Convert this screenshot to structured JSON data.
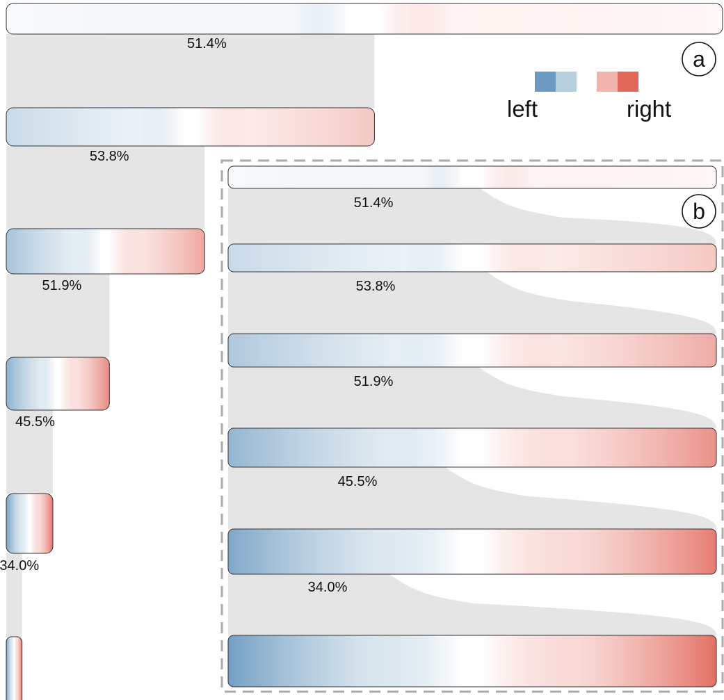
{
  "colors": {
    "left_dark": "#6c9ac0",
    "left_light": "#b6cfdf",
    "right_light": "#f2b5ae",
    "right_dark": "#e2685c",
    "flow": "#e5e5e5",
    "bar_border": "#333333",
    "dashed_border": "#aaaaaa"
  },
  "legend": {
    "left_label": "left",
    "right_label": "right"
  },
  "panel_a": {
    "label": "a",
    "levels": [
      {
        "percent_label": "51.4%",
        "width_fraction": 1.0,
        "intensity": 0.0
      },
      {
        "percent_label": "53.8%",
        "width_fraction": 0.514,
        "intensity": 0.35
      },
      {
        "percent_label": "51.9%",
        "width_fraction": 0.277,
        "intensity": 0.6
      },
      {
        "percent_label": "45.5%",
        "width_fraction": 0.144,
        "intensity": 0.8
      },
      {
        "percent_label": "34.0%",
        "width_fraction": 0.065,
        "intensity": 0.95
      },
      {
        "percent_label": "",
        "width_fraction": 0.022,
        "intensity": 1.0
      }
    ]
  },
  "panel_b": {
    "label": "b",
    "levels": [
      {
        "percent_label": "51.4%",
        "intensity": 0.0
      },
      {
        "percent_label": "53.8%",
        "intensity": 0.35
      },
      {
        "percent_label": "51.9%",
        "intensity": 0.55
      },
      {
        "percent_label": "45.5%",
        "intensity": 0.75
      },
      {
        "percent_label": "34.0%",
        "intensity": 0.9
      },
      {
        "percent_label": "",
        "intensity": 1.0
      }
    ]
  }
}
